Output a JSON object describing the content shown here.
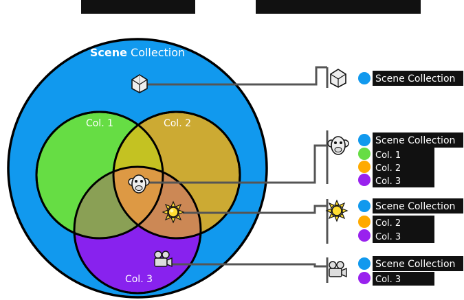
{
  "title_bars": [
    {
      "text": ""
    },
    {
      "text": ""
    }
  ],
  "diagram": {
    "scene_collection": {
      "bold": "Scene",
      "rest": " Collection",
      "color": "#1199ee"
    },
    "collections": [
      {
        "name": "Col. 1",
        "color": "#66dd44"
      },
      {
        "name": "Col. 2",
        "color": "#ddaa22"
      },
      {
        "name": "Col. 3",
        "color": "#8822ee"
      }
    ],
    "objects": [
      {
        "icon": "icosphere-icon"
      },
      {
        "icon": "monkey-head-icon"
      },
      {
        "icon": "sun-light-icon"
      },
      {
        "icon": "camera-icon"
      }
    ]
  },
  "legend": [
    {
      "icon": "icosphere-icon",
      "entries": [
        {
          "label": "Scene Collection",
          "color": "#1199ee"
        }
      ]
    },
    {
      "icon": "monkey-head-icon",
      "entries": [
        {
          "label": "Scene Collection",
          "color": "#1199ee"
        },
        {
          "label": "Col. 1",
          "color": "#66dd44"
        },
        {
          "label": "Col. 2",
          "color": "#ffaa00"
        },
        {
          "label": "Col. 3",
          "color": "#9922ee"
        }
      ]
    },
    {
      "icon": "sun-light-icon",
      "entries": [
        {
          "label": "Scene Collection",
          "color": "#1199ee"
        },
        {
          "label": "Col. 2",
          "color": "#ffaa00"
        },
        {
          "label": "Col. 3",
          "color": "#9922ee"
        }
      ]
    },
    {
      "icon": "camera-icon",
      "entries": [
        {
          "label": "Scene Collection",
          "color": "#1199ee"
        },
        {
          "label": "Col. 3",
          "color": "#9922ee"
        }
      ]
    }
  ]
}
